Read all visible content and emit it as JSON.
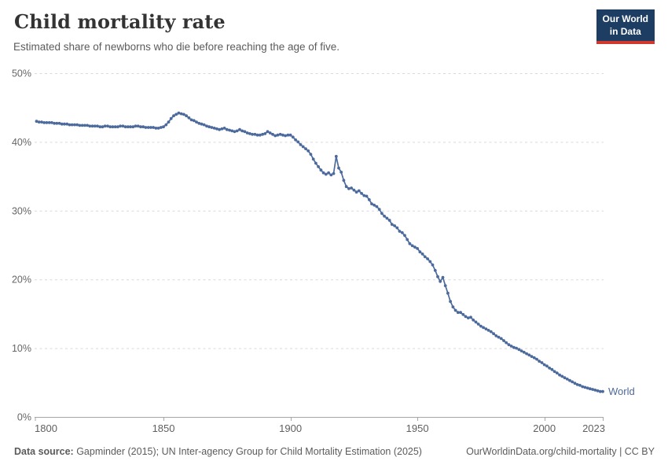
{
  "header": {
    "title": "Child mortality rate",
    "subtitle": "Estimated share of newborns who die before reaching the age of five."
  },
  "logo": {
    "line1": "Our World",
    "line2": "in Data",
    "bg_color": "#1d3d63",
    "accent_color": "#d0382e"
  },
  "chart_data": {
    "type": "line",
    "title": "Child mortality rate",
    "xlabel": "",
    "ylabel": "",
    "xlim": [
      1800,
      2023
    ],
    "ylim": [
      0,
      50
    ],
    "x_ticks": [
      1800,
      1850,
      1900,
      1950,
      2000,
      2023
    ],
    "y_ticks": [
      0,
      10,
      20,
      30,
      40,
      50
    ],
    "y_tick_suffix": "%",
    "grid": "horizontal-dashed",
    "legend": "end-of-line-label",
    "series": [
      {
        "name": "World",
        "color": "#4C6A9C",
        "year_start": 1800,
        "year_end": 2023,
        "values": [
          43.0,
          42.9,
          42.9,
          42.8,
          42.8,
          42.8,
          42.8,
          42.7,
          42.7,
          42.7,
          42.6,
          42.6,
          42.6,
          42.5,
          42.5,
          42.5,
          42.5,
          42.4,
          42.4,
          42.4,
          42.4,
          42.3,
          42.3,
          42.3,
          42.3,
          42.2,
          42.2,
          42.3,
          42.3,
          42.2,
          42.2,
          42.2,
          42.2,
          42.3,
          42.3,
          42.2,
          42.2,
          42.2,
          42.2,
          42.3,
          42.3,
          42.2,
          42.2,
          42.1,
          42.1,
          42.1,
          42.1,
          42.0,
          42.0,
          42.1,
          42.2,
          42.5,
          42.9,
          43.4,
          43.8,
          44.0,
          44.2,
          44.1,
          44.0,
          43.8,
          43.5,
          43.2,
          43.1,
          42.9,
          42.7,
          42.6,
          42.5,
          42.3,
          42.2,
          42.1,
          42.0,
          41.9,
          41.8,
          41.9,
          42.0,
          41.8,
          41.7,
          41.6,
          41.5,
          41.6,
          41.8,
          41.6,
          41.5,
          41.3,
          41.2,
          41.1,
          41.1,
          41.0,
          41.0,
          41.1,
          41.2,
          41.5,
          41.3,
          41.1,
          40.9,
          41.0,
          41.1,
          41.0,
          40.9,
          41.0,
          41.0,
          40.7,
          40.3,
          40.0,
          39.6,
          39.3,
          39.0,
          38.7,
          38.2,
          37.5,
          36.9,
          36.4,
          35.9,
          35.5,
          35.3,
          35.5,
          35.2,
          35.4,
          37.9,
          36.2,
          35.6,
          34.4,
          33.5,
          33.2,
          33.3,
          33.0,
          32.7,
          32.9,
          32.5,
          32.2,
          32.1,
          31.6,
          31.0,
          30.8,
          30.6,
          30.2,
          29.6,
          29.2,
          28.9,
          28.6,
          28.0,
          27.8,
          27.5,
          27.0,
          26.8,
          26.4,
          25.8,
          25.2,
          24.9,
          24.7,
          24.5,
          24.0,
          23.7,
          23.3,
          23.0,
          22.6,
          22.1,
          21.3,
          20.4,
          19.7,
          20.3,
          19.1,
          18.0,
          16.8,
          16.0,
          15.5,
          15.2,
          15.2,
          14.9,
          14.6,
          14.4,
          14.5,
          14.1,
          13.8,
          13.5,
          13.2,
          13.0,
          12.8,
          12.6,
          12.4,
          12.1,
          11.8,
          11.6,
          11.4,
          11.1,
          10.8,
          10.5,
          10.3,
          10.1,
          10.0,
          9.8,
          9.6,
          9.4,
          9.2,
          9.0,
          8.8,
          8.6,
          8.4,
          8.1,
          7.9,
          7.6,
          7.4,
          7.1,
          6.9,
          6.6,
          6.4,
          6.1,
          5.9,
          5.7,
          5.5,
          5.3,
          5.1,
          4.9,
          4.7,
          4.6,
          4.4,
          4.3,
          4.2,
          4.1,
          4.0,
          3.9,
          3.8,
          3.7,
          3.7
        ]
      }
    ]
  },
  "footer": {
    "source_label": "Data source:",
    "source_rest": " Gapminder (2015); UN Inter-agency Group for Child Mortality Estimation (2025)",
    "credit": "OurWorldinData.org/child-mortality | CC BY"
  }
}
